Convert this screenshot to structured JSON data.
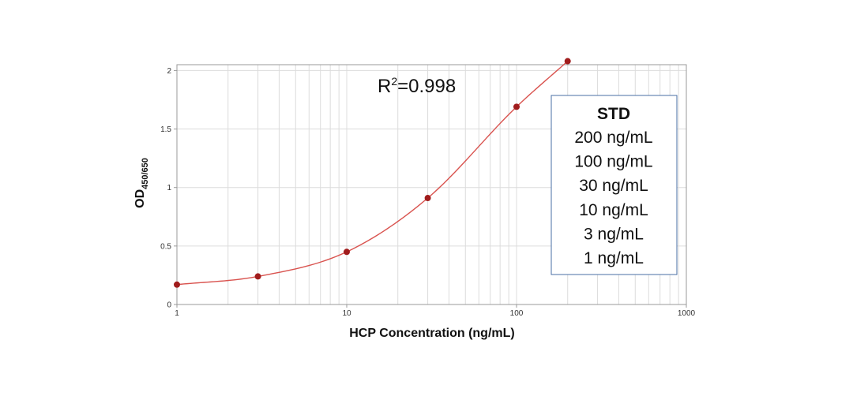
{
  "chart_data": {
    "type": "scatter",
    "xscale": "log",
    "xlim": [
      1,
      1000
    ],
    "ylim": [
      0,
      2.05
    ],
    "xlabel": "HCP Concentration (ng/mL)",
    "ylabel": {
      "main": "OD",
      "sub": "450/650"
    },
    "xticks": [
      "1",
      "10",
      "100",
      "1000"
    ],
    "yticks": [
      "0",
      "0.5",
      "1",
      "1.5",
      "2"
    ],
    "grid": true,
    "annotation": {
      "base": "R",
      "sup": "2",
      "rest": "=0.998"
    },
    "legend": {
      "placement": "right",
      "title": "STD",
      "items": [
        "200 ng/mL",
        "100 ng/mL",
        "30 ng/mL",
        "10 ng/mL",
        "3 ng/mL",
        "1 ng/mL"
      ]
    },
    "series": [
      {
        "x": [
          1,
          3,
          10,
          30,
          100,
          200
        ],
        "y": [
          0.17,
          0.24,
          0.45,
          0.91,
          1.69,
          2.08
        ],
        "color": "#a01c1c",
        "fit_color": "#d9534f"
      }
    ]
  }
}
